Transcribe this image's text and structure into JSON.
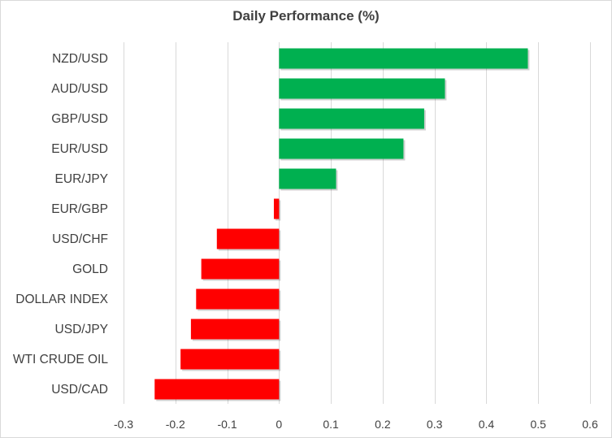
{
  "chart_data": {
    "type": "bar",
    "orientation": "horizontal",
    "title": "Daily Performance  (%)",
    "xlabel": "",
    "ylabel": "",
    "xlim": [
      -0.3,
      0.6
    ],
    "xticks": [
      -0.3,
      -0.2,
      -0.1,
      0,
      0.1,
      0.2,
      0.3,
      0.4,
      0.5,
      0.6
    ],
    "xtick_labels": [
      "-0.3",
      "-0.2",
      "-0.1",
      "0",
      "0.1",
      "0.2",
      "0.3",
      "0.4",
      "0.5",
      "0.6"
    ],
    "grid": "vertical",
    "categories": [
      "NZD/USD",
      "AUD/USD",
      "GBP/USD",
      "EUR/USD",
      "EUR/JPY",
      "EUR/GBP",
      "USD/CHF",
      "GOLD",
      "DOLLAR INDEX",
      "USD/JPY",
      "WTI CRUDE OIL",
      "USD/CAD"
    ],
    "values": [
      0.48,
      0.32,
      0.28,
      0.24,
      0.11,
      -0.01,
      -0.12,
      -0.15,
      -0.16,
      -0.17,
      -0.19,
      -0.24
    ],
    "colors": {
      "positive": "#00b050",
      "negative": "#ff0000",
      "grid": "#d9d9d9",
      "text": "#404040"
    }
  }
}
